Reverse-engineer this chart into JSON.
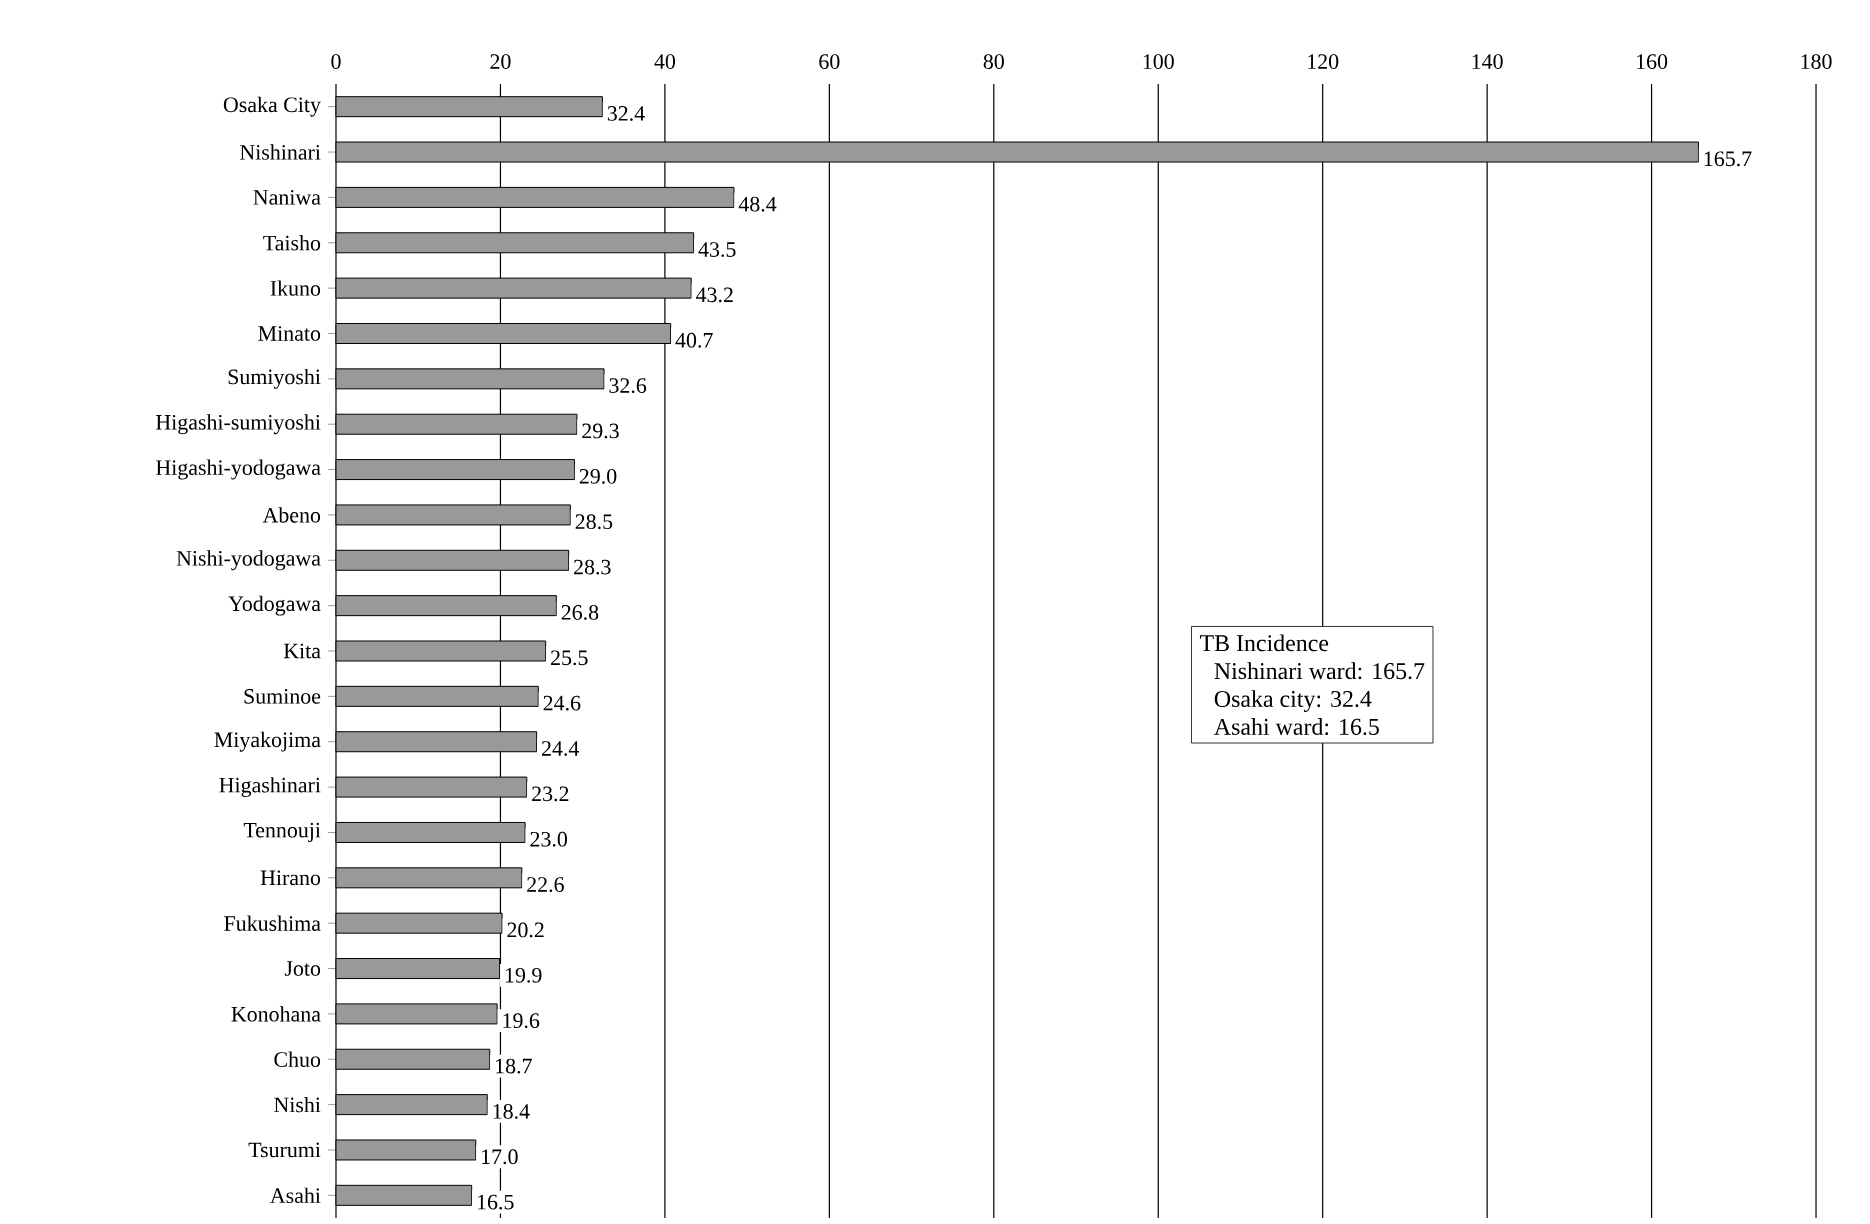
{
  "chart_data": {
    "type": "bar",
    "orientation": "horizontal",
    "categories": [
      "Osaka City",
      "Nishinari",
      "Naniwa",
      "Taisho",
      "Ikuno",
      "Minato",
      "Sumiyoshi",
      "Higashi-sumiyoshi",
      "Higashi-yodogawa",
      "Abeno",
      "Nishi-yodogawa",
      "Yodogawa",
      "Kita",
      "Suminoe",
      "Miyakojima",
      "Higashinari",
      "Tennouji",
      "Hirano",
      "Fukushima",
      "Joto",
      "Konohana",
      "Chuo",
      "Nishi",
      "Tsurumi",
      "Asahi"
    ],
    "values": [
      32.4,
      165.7,
      48.4,
      43.5,
      43.2,
      40.7,
      32.6,
      29.3,
      29.0,
      28.5,
      28.3,
      26.8,
      25.5,
      24.6,
      24.4,
      23.2,
      23.0,
      22.6,
      20.2,
      19.9,
      19.6,
      18.7,
      18.4,
      17.0,
      16.5
    ],
    "value_labels": [
      "32.4",
      "165.7",
      "48.4",
      "43.5",
      "43.2",
      "40.7",
      "32.6",
      "29.3",
      "29.0",
      "28.5",
      "28.3",
      "26.8",
      "25.5",
      "24.6",
      "24.4",
      "23.2",
      "23.0",
      "22.6",
      "20.2",
      "19.9",
      "19.6",
      "18.7",
      "18.4",
      "17.0",
      "16.5"
    ],
    "color": "#999999",
    "xlim": [
      0,
      180
    ],
    "xticks": [
      0,
      20,
      40,
      60,
      80,
      100,
      120,
      140,
      160,
      180
    ],
    "grid": "x",
    "annotations": [
      "TB Incidence",
      "Nishinari ward: 165.7",
      "Osaka city: 32.4",
      "Asahi ward: 16.5"
    ]
  }
}
